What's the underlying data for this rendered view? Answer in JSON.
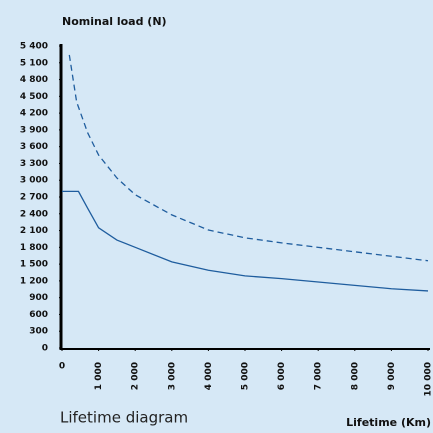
{
  "chart_data": {
    "type": "line",
    "title": "Nominal load (N)",
    "caption": "Lifetime diagram",
    "x_label": "Lifetime (Km)",
    "series": [
      {
        "color": "#1f5d9e",
        "dash": false,
        "x": [
          0,
          450,
          700,
          1000,
          1500,
          2000,
          3000,
          4000,
          5000,
          6000,
          7000,
          8000,
          9000,
          10000
        ],
        "values": [
          2800,
          2800,
          2500,
          2150,
          1930,
          1800,
          1540,
          1390,
          1290,
          1240,
          1180,
          1120,
          1060,
          1020
        ]
      },
      {
        "color": "#1f5d9e",
        "dash": true,
        "x": [
          200,
          400,
          700,
          1000,
          1500,
          2000,
          3000,
          4000,
          5000,
          6000,
          7000,
          8000,
          9000,
          10000
        ],
        "values": [
          5240,
          4400,
          3850,
          3450,
          3040,
          2740,
          2380,
          2110,
          1970,
          1880,
          1800,
          1720,
          1640,
          1560
        ]
      }
    ],
    "xlim": [
      0,
      10000
    ],
    "xticks": [
      0,
      {
        "value": 1000,
        "label": "1 000"
      },
      {
        "value": 2000,
        "label": "2 000"
      },
      {
        "value": 3000,
        "label": "3 000"
      },
      {
        "value": 4000,
        "label": "4 000"
      },
      {
        "value": 5000,
        "label": "5 000"
      },
      {
        "value": 6000,
        "label": "6 000"
      },
      {
        "value": 7000,
        "label": "7 000"
      },
      {
        "value": 8000,
        "label": "8 000"
      },
      {
        "value": 9000,
        "label": "9 000"
      },
      {
        "value": 10000,
        "label": "10 000"
      }
    ],
    "ylim": [
      0,
      5400
    ],
    "yticks": [
      0,
      300,
      600,
      900,
      {
        "value": 1200,
        "label": "1 200"
      },
      {
        "value": 1500,
        "label": "1 500"
      },
      {
        "value": 1800,
        "label": "1 800"
      },
      {
        "value": 2100,
        "label": "2 100"
      },
      {
        "value": 2400,
        "label": "2 400"
      },
      {
        "value": 2700,
        "label": "2 700"
      },
      {
        "value": 3000,
        "label": "3 000"
      },
      {
        "value": 3300,
        "label": "3 300"
      },
      {
        "value": 3600,
        "label": "3 600"
      },
      {
        "value": 3900,
        "label": "3 900"
      },
      {
        "value": 4200,
        "label": "4 200"
      },
      {
        "value": 4500,
        "label": "4 500"
      },
      {
        "value": 4800,
        "label": "4 800"
      },
      {
        "value": 5100,
        "label": "5 100"
      },
      {
        "value": 5400,
        "label": "5 400"
      }
    ]
  }
}
